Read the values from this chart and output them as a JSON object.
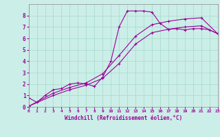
{
  "xlabel": "Windchill (Refroidissement éolien,°C)",
  "bg_color": "#cceee8",
  "grid_color": "#aaddcc",
  "line_color": "#990099",
  "xlim": [
    0,
    23
  ],
  "ylim": [
    0,
    9
  ],
  "xticks": [
    0,
    1,
    2,
    3,
    4,
    5,
    6,
    7,
    8,
    9,
    10,
    11,
    12,
    13,
    14,
    15,
    16,
    17,
    18,
    19,
    20,
    21,
    22,
    23
  ],
  "yticks": [
    0,
    1,
    2,
    3,
    4,
    5,
    6,
    7,
    8
  ],
  "line1_x": [
    0,
    1,
    2,
    3,
    4,
    5,
    6,
    7,
    8,
    9,
    10,
    11,
    12,
    13,
    14,
    15,
    16,
    17,
    18,
    19,
    20,
    21,
    22,
    23
  ],
  "line1_y": [
    0.8,
    0.4,
    1.0,
    1.5,
    1.6,
    2.0,
    2.1,
    2.0,
    1.8,
    2.6,
    4.0,
    7.0,
    8.4,
    8.4,
    8.4,
    8.3,
    7.3,
    6.8,
    6.85,
    6.75,
    6.85,
    6.85,
    6.75,
    6.4
  ],
  "line2_x": [
    0,
    3,
    5,
    7,
    9,
    11,
    13,
    15,
    17,
    19,
    21,
    23
  ],
  "line2_y": [
    0.05,
    1.2,
    1.7,
    2.1,
    2.9,
    4.5,
    6.2,
    7.2,
    7.5,
    7.7,
    7.8,
    6.4
  ],
  "line3_x": [
    0,
    3,
    5,
    7,
    9,
    11,
    13,
    15,
    17,
    19,
    21,
    23
  ],
  "line3_y": [
    0.05,
    1.0,
    1.5,
    1.9,
    2.5,
    3.8,
    5.5,
    6.5,
    6.8,
    7.0,
    7.1,
    6.4
  ]
}
